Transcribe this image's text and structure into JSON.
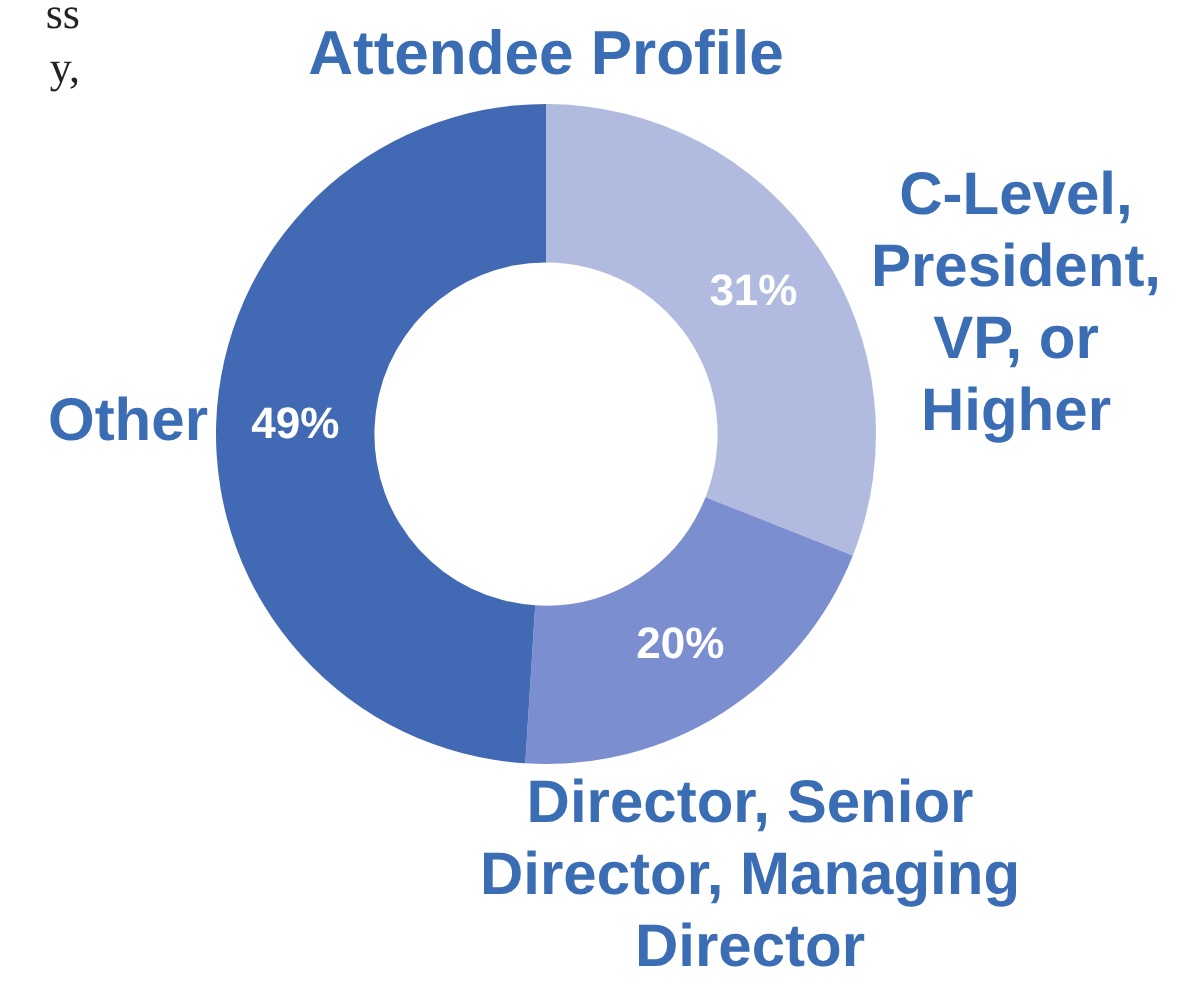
{
  "chart_data": {
    "type": "donut",
    "title": "Attendee Profile",
    "categories": [
      "C-Level, President, VP, or Higher",
      "Director, Senior Director, Managing Director",
      "Other"
    ],
    "values": [
      31,
      20,
      49
    ],
    "colors": [
      "#b0bbdf",
      "#7b8ed0",
      "#4169b4"
    ],
    "value_labels": [
      "31%",
      "20%",
      "49%"
    ],
    "annotations": [
      "ss",
      "y,"
    ],
    "legend": false
  }
}
